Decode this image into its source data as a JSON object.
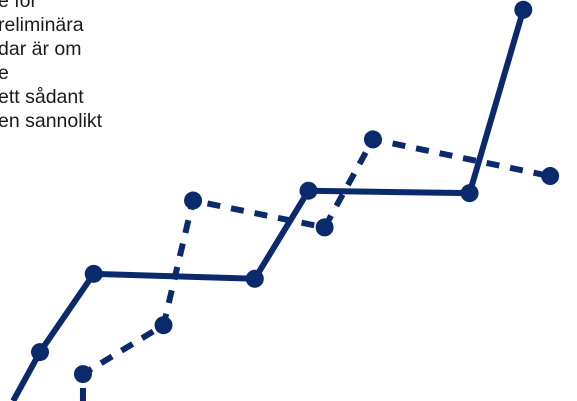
{
  "text_lines": [
    "e för",
    "reliminära",
    "dar är om",
    "e",
    " ett sådant",
    "en sannolikt"
  ],
  "colors": {
    "series": "#0b2a6b",
    "text": "#1a1a1a",
    "background": "#ffffff"
  },
  "chart_data": {
    "type": "line",
    "title": "",
    "xlabel": "",
    "ylabel": "",
    "grid": false,
    "series": [
      {
        "style": "solid",
        "points": [
          {
            "x": 0.5,
            "y": 0.0
          },
          {
            "x": 1.0,
            "y": 1.0
          },
          {
            "x": 2.0,
            "y": 2.6
          },
          {
            "x": 5.0,
            "y": 2.5
          },
          {
            "x": 6.0,
            "y": 4.3
          },
          {
            "x": 9.0,
            "y": 4.25
          },
          {
            "x": 10.0,
            "y": 8.0
          }
        ]
      },
      {
        "style": "dashed",
        "points": [
          {
            "x": 1.8,
            "y": 0.0
          },
          {
            "x": 1.8,
            "y": 0.55
          },
          {
            "x": 3.3,
            "y": 1.55
          },
          {
            "x": 3.85,
            "y": 4.1
          },
          {
            "x": 6.3,
            "y": 3.55
          },
          {
            "x": 7.2,
            "y": 5.35
          },
          {
            "x": 10.5,
            "y": 4.6
          }
        ]
      }
    ]
  }
}
